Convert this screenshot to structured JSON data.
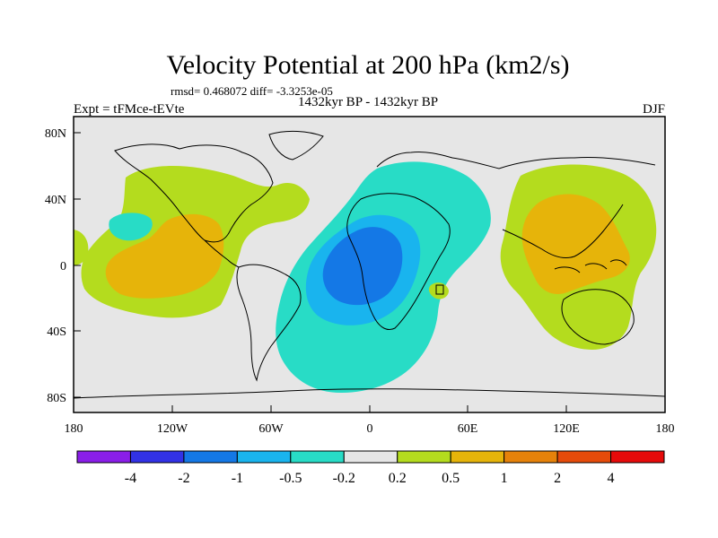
{
  "chart_data": {
    "type": "heatmap",
    "title": "Velocity Potential at 200 hPa (km2/s)",
    "stats_line": "rmsd= 0.468072 diff= -3.3253e-05",
    "left_label": "Expt = tFMce-tEVte",
    "center_label": "1432kyr BP - 1432kyr BP",
    "right_label": "DJF",
    "x_ticks": [
      "180",
      "120W",
      "60W",
      "0",
      "60E",
      "120E",
      "180"
    ],
    "y_ticks": [
      "80N",
      "40N",
      "0",
      "40S",
      "80S"
    ],
    "colorbar": {
      "labels": [
        "-4",
        "-2",
        "-1",
        "-0.5",
        "-0.2",
        "0.2",
        "0.5",
        "1",
        "2",
        "4"
      ],
      "colors": [
        "#8a1ee8",
        "#3232e6",
        "#1478e6",
        "#19b4ee",
        "#28dcc6",
        "#e6e6e6",
        "#b4dc1e",
        "#e6b40a",
        "#e6820a",
        "#e64b0a",
        "#e60a0a"
      ]
    },
    "regions": [
      {
        "name": "pacific-north-positive",
        "level": "0.2 to 0.5"
      },
      {
        "name": "east-pacific-positive",
        "level": "0.5 to 1"
      },
      {
        "name": "atlantic-africa-negative",
        "level": "-0.5 to -0.2"
      },
      {
        "name": "tropical-atlantic-negative",
        "level": "-1 to -0.5"
      },
      {
        "name": "south-atlantic-negative",
        "level": "-2 to -1"
      },
      {
        "name": "west-pacific-positive",
        "level": "0.5 to 1"
      }
    ]
  }
}
